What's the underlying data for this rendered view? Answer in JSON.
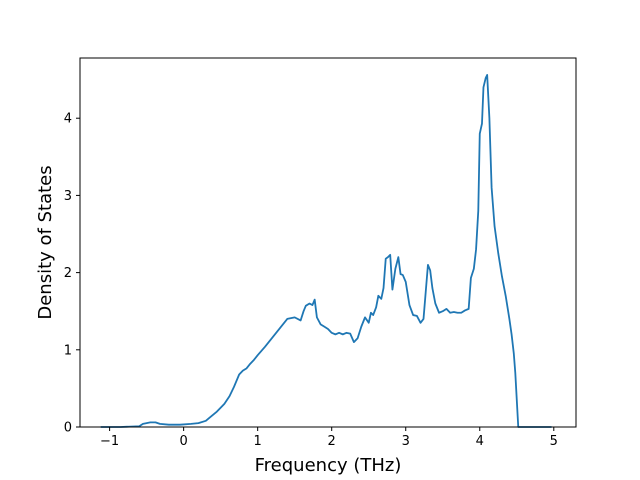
{
  "chart_data": {
    "type": "line",
    "title": "",
    "xlabel": "Frequency (THz)",
    "ylabel": "Density of States",
    "xlim": [
      -1.4,
      5.3
    ],
    "ylim": [
      0,
      4.78
    ],
    "xticks": [
      -1,
      0,
      1,
      2,
      3,
      4,
      5
    ],
    "yticks": [
      0,
      1,
      2,
      3,
      4
    ],
    "grid": false,
    "line_color": "#1f77b4",
    "series": [
      {
        "x": [
          -1.12,
          -0.85,
          -0.6,
          -0.55,
          -0.45,
          -0.38,
          -0.32,
          -0.2,
          -0.05,
          0.1,
          0.2,
          0.3,
          0.35,
          0.45,
          0.55,
          0.62,
          0.68,
          0.75,
          0.8,
          0.85,
          0.9,
          0.95,
          1.0,
          1.1,
          1.2,
          1.3,
          1.4,
          1.5,
          1.58,
          1.62,
          1.65,
          1.7,
          1.74,
          1.77,
          1.8,
          1.85,
          1.9,
          1.95,
          2.0,
          2.05,
          2.1,
          2.15,
          2.2,
          2.25,
          2.3,
          2.35,
          2.4,
          2.45,
          2.5,
          2.53,
          2.56,
          2.6,
          2.63,
          2.67,
          2.7,
          2.73,
          2.76,
          2.79,
          2.82,
          2.86,
          2.9,
          2.93,
          2.96,
          3.0,
          3.05,
          3.1,
          3.15,
          3.2,
          3.24,
          3.27,
          3.3,
          3.33,
          3.36,
          3.4,
          3.45,
          3.5,
          3.55,
          3.6,
          3.65,
          3.7,
          3.75,
          3.8,
          3.85,
          3.88,
          3.92,
          3.95,
          3.98,
          4.0,
          4.03,
          4.05,
          4.08,
          4.1,
          4.13,
          4.16,
          4.2,
          4.25,
          4.3,
          4.35,
          4.4,
          4.43,
          4.46,
          4.48,
          4.52,
          4.6,
          4.75,
          4.97
        ],
        "y": [
          0,
          0,
          0.01,
          0.04,
          0.06,
          0.06,
          0.04,
          0.03,
          0.03,
          0.04,
          0.05,
          0.08,
          0.12,
          0.2,
          0.3,
          0.4,
          0.52,
          0.68,
          0.73,
          0.76,
          0.82,
          0.87,
          0.93,
          1.04,
          1.16,
          1.28,
          1.4,
          1.42,
          1.38,
          1.5,
          1.57,
          1.6,
          1.58,
          1.65,
          1.42,
          1.33,
          1.3,
          1.27,
          1.22,
          1.2,
          1.22,
          1.2,
          1.22,
          1.21,
          1.1,
          1.15,
          1.3,
          1.42,
          1.35,
          1.48,
          1.45,
          1.55,
          1.7,
          1.66,
          1.8,
          2.18,
          2.2,
          2.23,
          1.78,
          2.05,
          2.2,
          1.98,
          1.97,
          1.88,
          1.58,
          1.45,
          1.44,
          1.35,
          1.4,
          1.75,
          2.1,
          2.03,
          1.8,
          1.6,
          1.48,
          1.5,
          1.53,
          1.48,
          1.49,
          1.48,
          1.48,
          1.51,
          1.53,
          1.93,
          2.05,
          2.3,
          2.8,
          3.8,
          3.93,
          4.4,
          4.52,
          4.56,
          4.0,
          3.1,
          2.6,
          2.25,
          1.95,
          1.7,
          1.4,
          1.2,
          0.95,
          0.7,
          0,
          0,
          0,
          0
        ]
      }
    ]
  }
}
